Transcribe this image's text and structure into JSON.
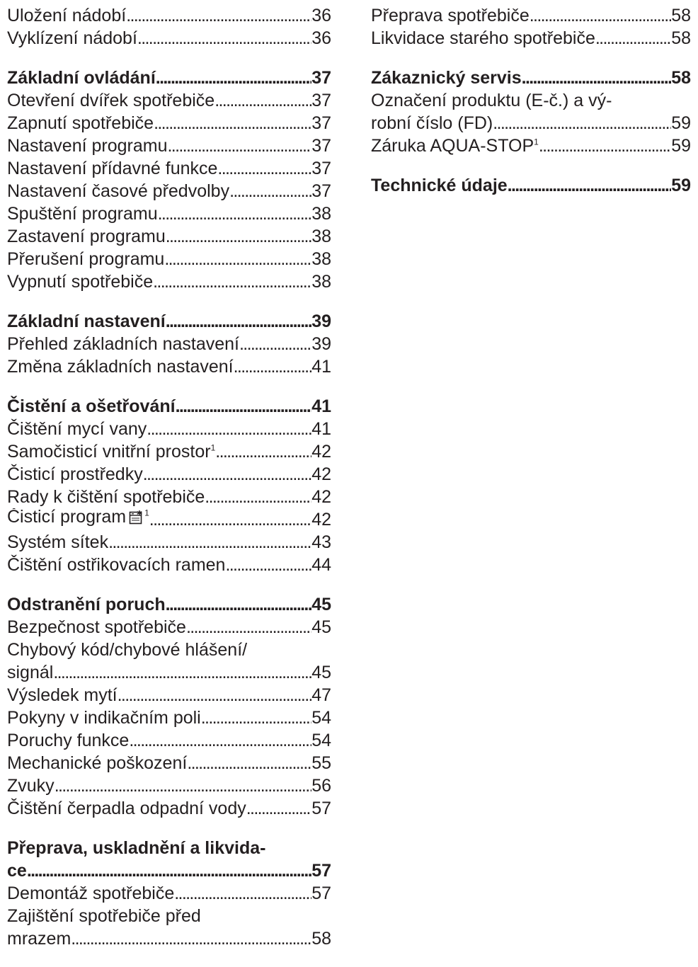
{
  "left_column": {
    "section_dishes": {
      "entries": [
        {
          "title": "Uložení nádobí",
          "page": "36"
        },
        {
          "title": "Vyklízení nádobí",
          "page": "36"
        }
      ]
    },
    "section_basic_operation": {
      "heading": {
        "title": "Základní ovládání",
        "page": "37"
      },
      "entries": [
        {
          "title": "Otevření dvířek spotřebiče",
          "page": "37"
        },
        {
          "title": "Zapnutí spotřebiče",
          "page": "37"
        },
        {
          "title": "Nastavení programu",
          "page": "37"
        },
        {
          "title": "Nastavení přídavné funkce",
          "page": "37"
        },
        {
          "title": "Nastavení časové předvolby",
          "page": "37"
        },
        {
          "title": "Spuštění programu",
          "page": "38"
        },
        {
          "title": "Zastavení programu",
          "page": "38"
        },
        {
          "title": "Přerušení programu",
          "page": "38"
        },
        {
          "title": "Vypnutí spotřebiče",
          "page": "38"
        }
      ]
    },
    "section_basic_settings": {
      "heading": {
        "title": "Základní nastavení",
        "page": "39"
      },
      "entries": [
        {
          "title": "Přehled základních nastavení",
          "page": "39"
        },
        {
          "title": "Změna základních nastavení",
          "page": "41"
        }
      ]
    },
    "section_cleaning": {
      "heading": {
        "title": "Čistění a ošetřování",
        "page": "41"
      },
      "entries": [
        {
          "title": "Čištění mycí vany",
          "page": "41"
        },
        {
          "title": "Samočisticí vnitřní prostor",
          "footnote": "1",
          "page": "42"
        },
        {
          "title": "Čisticí prostředky",
          "page": "42"
        },
        {
          "title": "Rady k čištění spotřebiče",
          "page": "42"
        },
        {
          "title": "Čisticí program",
          "icon": "machine-care-icon",
          "footnote": "1",
          "page": "42"
        },
        {
          "title": "Systém sítek",
          "page": "43"
        },
        {
          "title": "Čištění ostřikovacích ramen",
          "page": "44"
        }
      ]
    },
    "section_troubleshooting": {
      "heading": {
        "title": "Odstranění poruch",
        "page": "45"
      },
      "entries": [
        {
          "title": "Bezpečnost spotřebiče",
          "page": "45"
        },
        {
          "title_line1": "Chybový kód/chybové hlášení/",
          "title_line2": "signál",
          "page": "45"
        },
        {
          "title": "Výsledek mytí",
          "page": "47"
        },
        {
          "title": "Pokyny v indikačním poli",
          "page": "54"
        },
        {
          "title": "Poruchy funkce",
          "page": "54"
        },
        {
          "title": "Mechanické poškození",
          "page": "55"
        },
        {
          "title": "Zvuky",
          "page": "56"
        },
        {
          "title": "Čištění čerpadla odpadní vody",
          "page": "57"
        }
      ]
    },
    "section_transport": {
      "heading": {
        "title_line1": "Přeprava, uskladnění a likvida-",
        "title_line2": "ce",
        "page": "57"
      },
      "entries": [
        {
          "title": "Demontáž spotřebiče",
          "page": "57"
        },
        {
          "title_line1": "Zajištění spotřebiče před",
          "title_line2": "mrazem",
          "page": "58"
        }
      ]
    }
  },
  "right_column": {
    "section_transport_cont": {
      "entries": [
        {
          "title": "Přeprava spotřebiče",
          "page": "58"
        },
        {
          "title": "Likvidace starého spotřebiče",
          "page": "58"
        }
      ]
    },
    "section_service": {
      "heading": {
        "title": "Zákaznický servis",
        "page": "58"
      },
      "entries": [
        {
          "title_line1": "Označení produktu (E-č.) a vý-",
          "title_line2": "robní číslo (FD)",
          "page": "59"
        },
        {
          "title": "Záruka AQUA-STOP",
          "footnote": "1",
          "page": "59"
        }
      ]
    },
    "section_technical": {
      "heading": {
        "title": "Technické údaje",
        "page": "59"
      }
    }
  },
  "colors": {
    "text": "#231f20",
    "background": "#ffffff"
  }
}
